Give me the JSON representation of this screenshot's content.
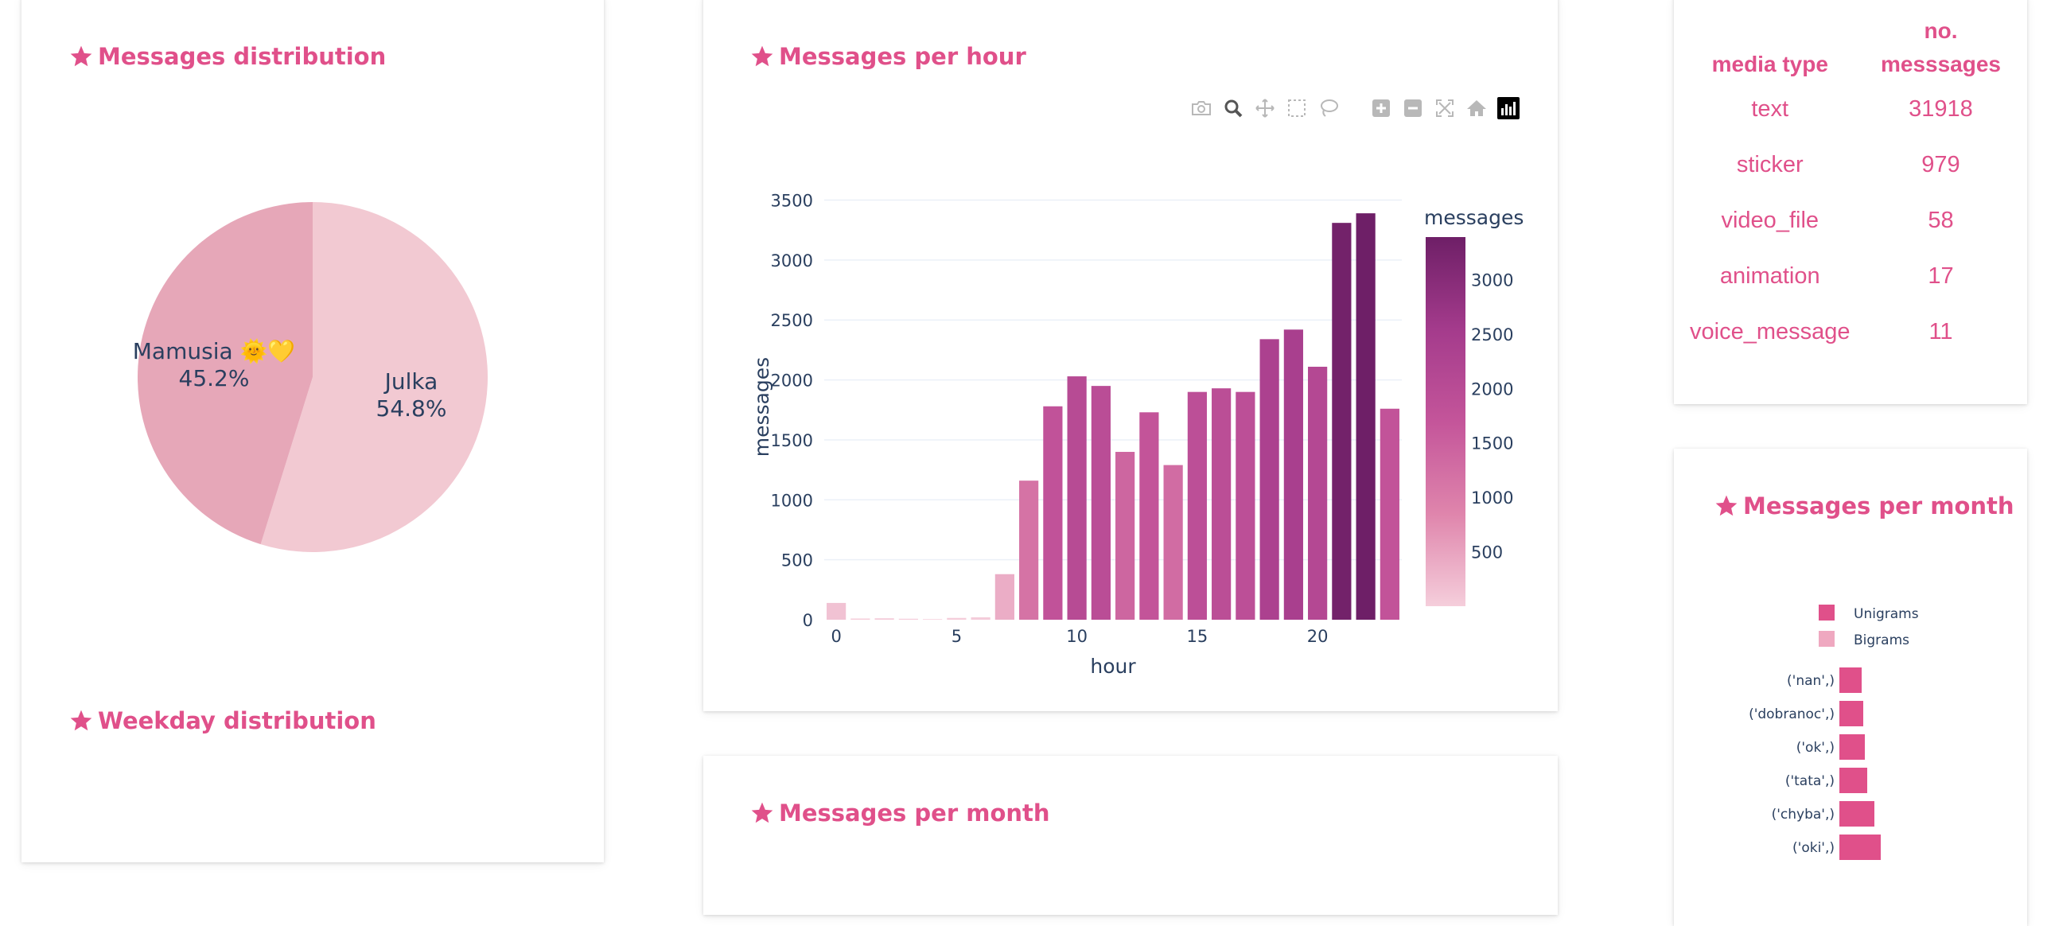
{
  "cards": {
    "distribution": {
      "title": "Messages distribution"
    },
    "weekday": {
      "title": "Weekday distribution"
    },
    "per_hour": {
      "title": "Messages per hour"
    },
    "per_month_center": {
      "title": "Messages per month"
    },
    "per_month_right": {
      "title": "Messages per month"
    }
  },
  "pie": {
    "slices": [
      {
        "name": "Julka",
        "percent": "54.8%",
        "value": 54.8,
        "color": "#f2c9d2"
      },
      {
        "name": "Mamusia 🌞💛",
        "percent": "45.2%",
        "value": 45.2,
        "color": "#e6a7b8"
      }
    ]
  },
  "modebar": {
    "buttons": [
      {
        "name": "camera-icon"
      },
      {
        "name": "zoom-icon"
      },
      {
        "name": "pan-icon"
      },
      {
        "name": "box-select-icon"
      },
      {
        "name": "lasso-select-icon"
      },
      {
        "name": "zoom-in-icon"
      },
      {
        "name": "zoom-out-icon"
      },
      {
        "name": "autoscale-icon"
      },
      {
        "name": "reset-axes-icon"
      },
      {
        "name": "plotly-logo-icon"
      }
    ]
  },
  "media_table": {
    "headers": [
      "media type",
      "no.\nmesssages"
    ],
    "rows": [
      {
        "type": "text",
        "count": "31918"
      },
      {
        "type": "sticker",
        "count": "979"
      },
      {
        "type": "video_file",
        "count": "58"
      },
      {
        "type": "animation",
        "count": "17"
      },
      {
        "type": "voice_message",
        "count": "11"
      }
    ]
  },
  "ngram_legend": [
    {
      "label": "Unigrams",
      "color": "#e0508a"
    },
    {
      "label": "Bigrams",
      "color": "#efa8c0"
    }
  ],
  "ngram_labels": [
    "('nan',)",
    "('dobranoc',)",
    "('ok',)",
    "('tata',)",
    "('chyba',)",
    "('oki',)"
  ],
  "chart_data": [
    {
      "type": "pie",
      "categories": [
        "Julka",
        "Mamusia 🌞💛"
      ],
      "values": [
        54.8,
        45.2
      ],
      "title": "Messages distribution"
    },
    {
      "type": "bar",
      "title": "Messages per hour",
      "xlabel": "hour",
      "ylabel": "messages",
      "x": [
        0,
        1,
        2,
        3,
        4,
        5,
        6,
        7,
        8,
        9,
        10,
        11,
        12,
        13,
        14,
        15,
        16,
        17,
        18,
        19,
        20,
        21,
        22,
        23
      ],
      "values": [
        140,
        10,
        12,
        8,
        5,
        15,
        20,
        380,
        1160,
        1780,
        2030,
        1950,
        1400,
        1730,
        1290,
        1900,
        1930,
        1900,
        2340,
        2420,
        2110,
        3310,
        3390,
        1760
      ],
      "xlim": [
        -0.5,
        23.5
      ],
      "ylim": [
        0,
        3550
      ],
      "xticks": [
        0,
        5,
        10,
        15,
        20
      ],
      "yticks": [
        0,
        500,
        1000,
        1500,
        2000,
        2500,
        3000,
        3500
      ],
      "grid": true,
      "colorbar": {
        "title": "messages",
        "ticks": [
          500,
          1000,
          1500,
          2000,
          2500,
          3000
        ],
        "range": [
          0,
          3390
        ],
        "colors": [
          "#f5cedb",
          "#df85ac",
          "#c4559a",
          "#a43b8c",
          "#6e1f67"
        ]
      }
    },
    {
      "type": "bar",
      "orientation": "horizontal",
      "title": "Messages per month",
      "categories": [
        "('nan',)",
        "('dobranoc',)",
        "('ok',)",
        "('tata',)",
        "('chyba',)",
        "('oki',)"
      ],
      "series": [
        {
          "name": "Unigrams",
          "values": [
            28,
            30,
            32,
            35,
            44,
            52
          ]
        }
      ],
      "legend": [
        "Unigrams",
        "Bigrams"
      ]
    }
  ]
}
